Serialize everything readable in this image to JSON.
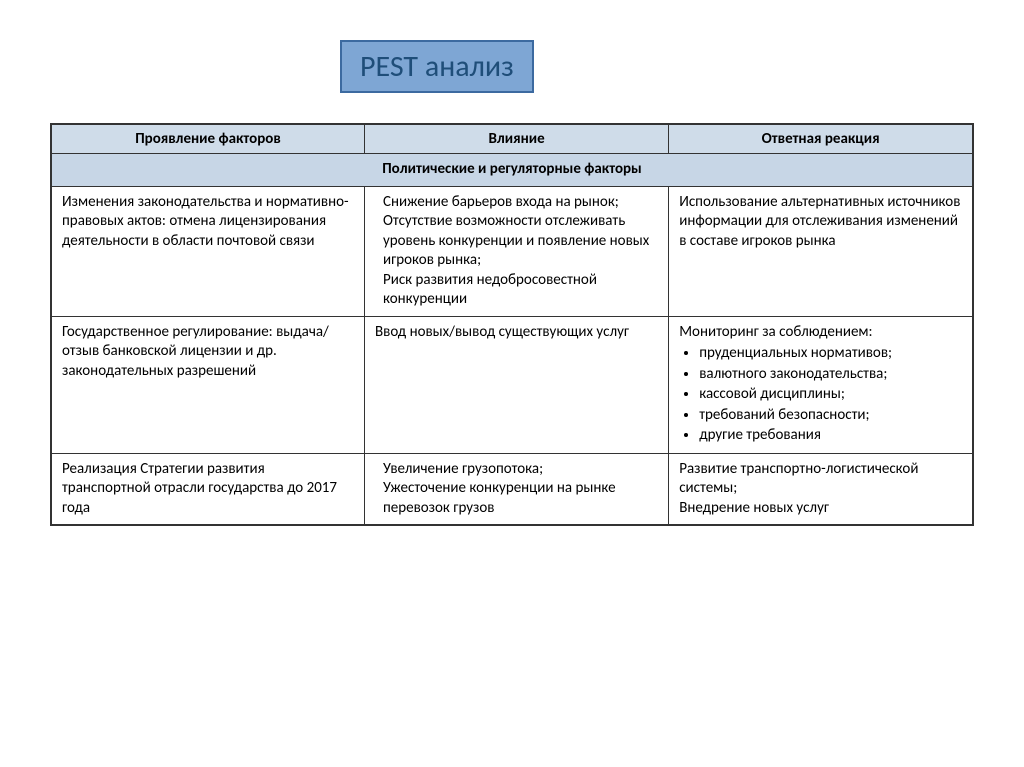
{
  "title": "PEST анализ",
  "headers": {
    "col1": "Проявление факторов",
    "col2": "Влияние",
    "col3": "Ответная реакция"
  },
  "section_title": "Политические и регуляторные факторы",
  "rows": [
    {
      "c1": "Изменения законодательства и нормативно-правовых актов: отмена лицензирования деятельности в области почтовой связи",
      "c2_lines": [
        "Снижение барьеров входа на рынок;",
        "Отсутствие возможности отслеживать уровень конкуренции и появление новых игроков рынка;",
        "Риск развития недобросовестной конкуренции"
      ],
      "c3": "Использование альтернативных источников информации для отслеживания изменений в составе игроков рынка"
    },
    {
      "c1": "Государственное регулирование: выдача/отзыв банковской лицензии и др. законодательных разрешений",
      "c2": "Ввод новых/вывод существующих услуг",
      "c3_lead": "Мониторинг за соблюдением:",
      "c3_bullets": [
        "пруденциальных нормативов;",
        "валютного законодательства;",
        "кассовой дисциплины;",
        "требований безопасности;",
        "другие требования"
      ]
    },
    {
      "c1": "Реализация Стратегии развития транспортной отрасли государства до 2017 года",
      "c2_lines": [
        "Увеличение грузопотока;",
        "Ужесточение конкуренции на рынке перевозок грузов"
      ],
      "c3_lines": [
        "Развитие транспортно-логистической системы;",
        "Внедрение новых услуг"
      ]
    }
  ]
}
